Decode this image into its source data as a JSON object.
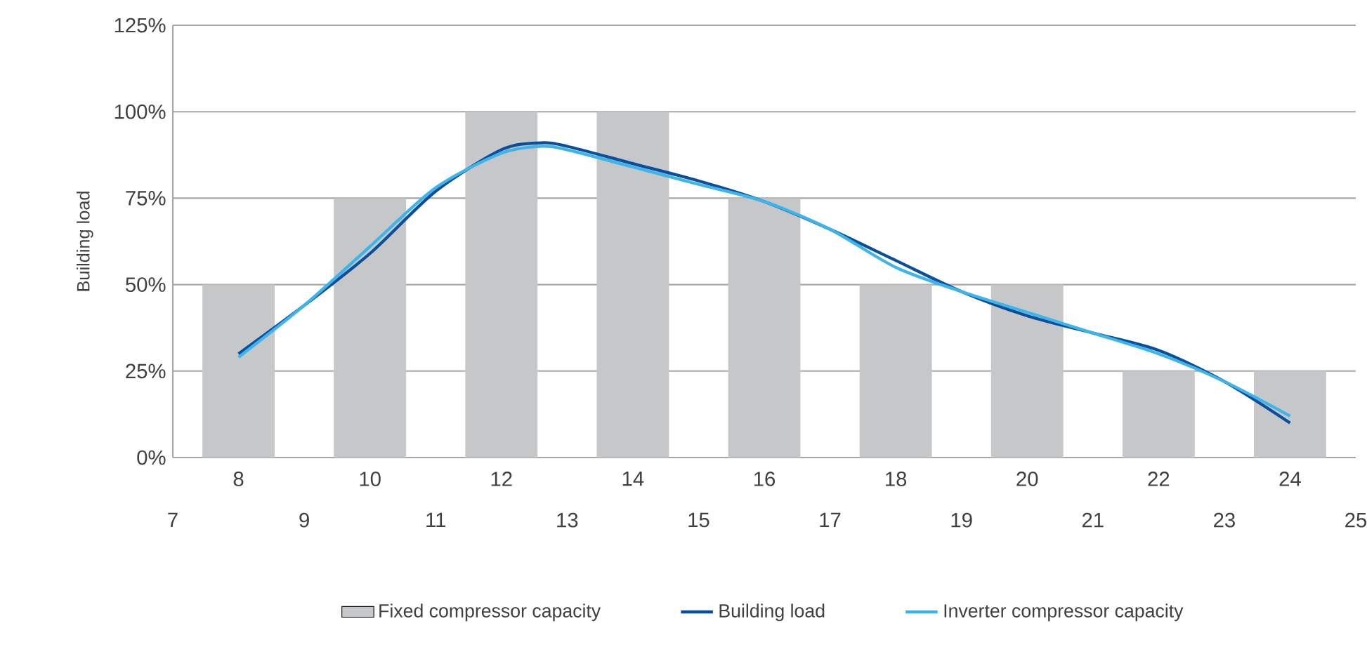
{
  "chart_data": {
    "type": "bar",
    "ylabel": "Building load",
    "series": [
      {
        "name": "Fixed compressor capacity",
        "color": "#c6c7c9",
        "x": [
          8,
          10,
          12,
          14,
          16,
          18,
          20,
          22,
          24
        ],
        "values": [
          50,
          75,
          100,
          100,
          75,
          50,
          50,
          25,
          25
        ]
      },
      {
        "name": "Building load",
        "type": "line",
        "color": "#0b4f9c",
        "x": [
          8,
          9,
          10,
          11,
          12,
          12.6,
          13,
          14,
          15,
          16,
          17,
          18,
          19,
          20,
          21,
          22,
          23,
          24
        ],
        "values": [
          30,
          44,
          59,
          77,
          89,
          91,
          90,
          85,
          80,
          74,
          66,
          57,
          48,
          41,
          36,
          31,
          22,
          10
        ]
      },
      {
        "name": "Inverter compressor capacity",
        "type": "line",
        "color": "#3db4ea",
        "x": [
          8,
          9,
          10,
          11,
          12,
          12.6,
          13,
          14,
          15,
          16,
          17,
          18,
          19,
          20,
          21,
          22,
          23,
          24
        ],
        "values": [
          29,
          44,
          61,
          78,
          88,
          90,
          89,
          84,
          79,
          74,
          66,
          55,
          48,
          42,
          36,
          30,
          22,
          12
        ]
      }
    ],
    "xlim": [
      7,
      25
    ],
    "xticks": [
      7,
      9,
      11,
      13,
      15,
      17,
      19,
      21,
      23,
      25
    ],
    "x2lim": [
      7,
      25
    ],
    "x2ticks": [
      8,
      10,
      12,
      14,
      16,
      18,
      20,
      22,
      24
    ],
    "ylim": [
      0,
      125
    ],
    "yticks": [
      {
        "value": 0,
        "label": "0%"
      },
      {
        "value": 25,
        "label": "25%"
      },
      {
        "value": 50,
        "label": "50%"
      },
      {
        "value": 75,
        "label": "75%"
      },
      {
        "value": 100,
        "label": "100%"
      },
      {
        "value": 125,
        "label": "125%"
      }
    ],
    "grid": "y",
    "legend": "bottom",
    "marker": "none",
    "line_style": "solid"
  }
}
